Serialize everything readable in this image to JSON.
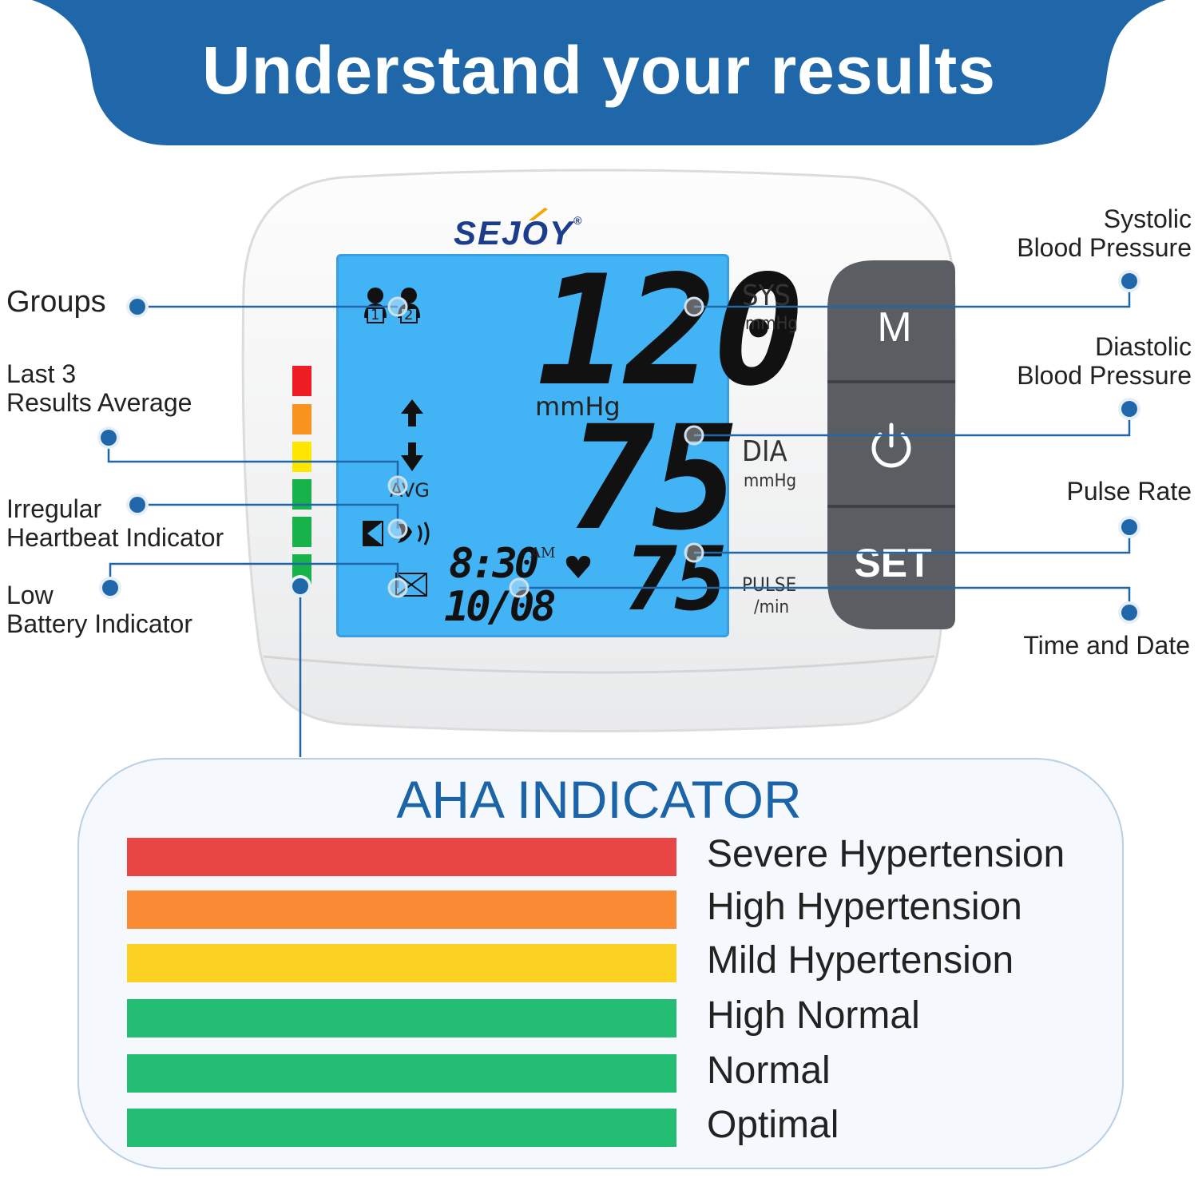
{
  "banner": {
    "title": "Understand your results",
    "color": "#1f67a9"
  },
  "device": {
    "brand": "SEJOY",
    "brand_mark": "®",
    "lcd": {
      "sys_value": "120",
      "unit_mid": "mmHg",
      "dia_value": "75",
      "pulse_value": "75",
      "time": "8:30",
      "am": "AM",
      "date": "10/08",
      "avg": "AVG",
      "group1": "1",
      "group2": "2"
    },
    "labels": {
      "sys": "SYS",
      "sys_unit": "mmHg",
      "dia": "DIA",
      "dia_unit": "mmHg",
      "pulse": "PULSE",
      "pulse_unit": "/min"
    },
    "buttons": {
      "m": "M",
      "set": "SET"
    },
    "side_indicator_colors": [
      "#ee1c25",
      "#f7931e",
      "#ffe600",
      "#17b24a",
      "#17b24a",
      "#17b24a"
    ]
  },
  "callouts": {
    "groups": "Groups",
    "last3_line1": "Last 3",
    "last3_line2": "Results Average",
    "irregular_line1": "Irregular",
    "irregular_line2": "Heartbeat Indicator",
    "low_line1": "Low",
    "low_line2": "Battery Indicator",
    "systolic_line1": "Systolic",
    "systolic_line2": "Blood Pressure",
    "diastolic_line1": "Diastolic",
    "diastolic_line2": "Blood Pressure",
    "pulse_rate": "Pulse Rate",
    "time_date": "Time and Date"
  },
  "aha": {
    "title": "AHA INDICATOR",
    "levels": [
      {
        "label": "Severe Hypertension",
        "color": "#e84545"
      },
      {
        "label": "High Hypertension",
        "color": "#fb8a35"
      },
      {
        "label": "Mild Hypertension",
        "color": "#fcd121"
      },
      {
        "label": "High Normal",
        "color": "#23bd74"
      },
      {
        "label": "Normal",
        "color": "#23bd74"
      },
      {
        "label": "Optimal",
        "color": "#23bd74"
      }
    ]
  }
}
